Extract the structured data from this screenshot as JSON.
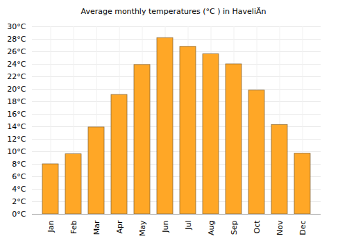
{
  "chart_data": {
    "type": "bar",
    "title": "Average monthly temperatures (°C ) in HaveliÄn",
    "categories": [
      "Jan",
      "Feb",
      "Mar",
      "Apr",
      "May",
      "Jun",
      "Jul",
      "Aug",
      "Sep",
      "Oct",
      "Nov",
      "Dec"
    ],
    "values": [
      8.0,
      9.6,
      13.9,
      19.1,
      23.9,
      28.2,
      26.8,
      25.6,
      24.0,
      19.8,
      14.3,
      9.7
    ],
    "color": "#ffa726",
    "ylim": [
      0,
      30
    ],
    "yticks": [
      {
        "value": 0,
        "label": "0°C"
      },
      {
        "value": 2,
        "label": "2°C"
      },
      {
        "value": 4,
        "label": "4°C"
      },
      {
        "value": 6,
        "label": "6°C"
      },
      {
        "value": 8,
        "label": "8°C"
      },
      {
        "value": 10,
        "label": "10°C"
      },
      {
        "value": 12,
        "label": "12°C"
      },
      {
        "value": 14,
        "label": "14°C"
      },
      {
        "value": 16,
        "label": "16°C"
      },
      {
        "value": 18,
        "label": "18°C"
      },
      {
        "value": 20,
        "label": "20°C"
      },
      {
        "value": 22,
        "label": "22°C"
      },
      {
        "value": 24,
        "label": "24°C"
      },
      {
        "value": 26,
        "label": "26°C"
      },
      {
        "value": 28,
        "label": "28°C"
      },
      {
        "value": 30,
        "label": "30°C"
      }
    ],
    "grid": true
  }
}
